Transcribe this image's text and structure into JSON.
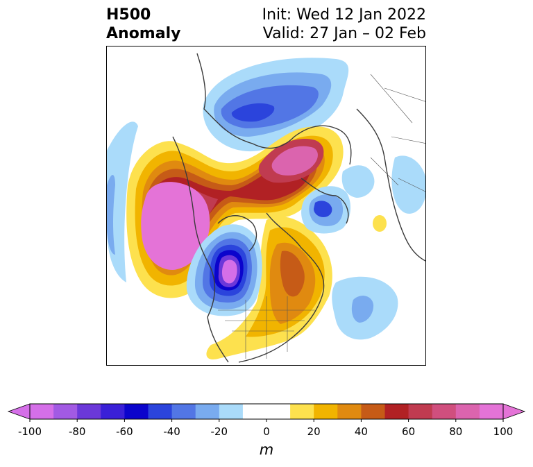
{
  "header": {
    "variable": "H500",
    "kind": "Anomaly",
    "init": "Init: Wed 12 Jan 2022",
    "valid": "Valid: 27 Jan – 02 Feb"
  },
  "colorbar": {
    "min": -100,
    "max": 100,
    "step": 10,
    "unit": "m",
    "tick_labels": [
      "-100",
      "-80",
      "-60",
      "-40",
      "-20",
      "0",
      "20",
      "40",
      "60",
      "80",
      "100"
    ],
    "colors": [
      "#d56fe8",
      "#a25ae3",
      "#6b38d9",
      "#3a20d7",
      "#0b04cc",
      "#2b44dc",
      "#5276e5",
      "#79abef",
      "#aadbfa",
      "#ffffff",
      "#ffffff",
      "#fde14e",
      "#f1b400",
      "#e08a10",
      "#c65b17",
      "#b12124",
      "#c03b50",
      "#d04f7e",
      "#db64ae",
      "#e473d7"
    ]
  }
}
